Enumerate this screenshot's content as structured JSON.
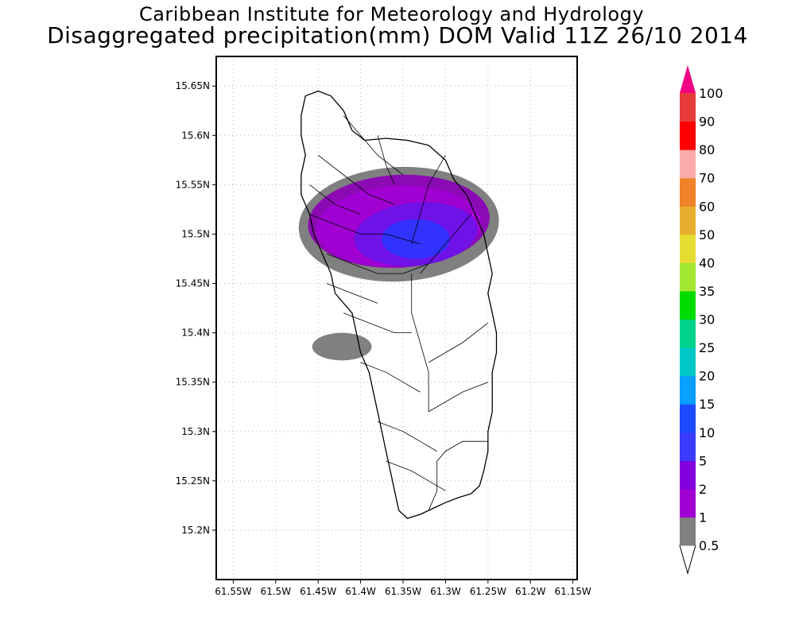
{
  "header": {
    "institute": "Caribbean Institute for Meteorology and Hydrology",
    "product": "Disaggregated precipitation(mm) DOM Valid 11Z 26/10 2014"
  },
  "map": {
    "lat_range": [
      15.15,
      15.68
    ],
    "lon_range": [
      -61.57,
      -61.145
    ],
    "lat_ticks": [
      {
        "value": 15.2,
        "label": "15.2N"
      },
      {
        "value": 15.25,
        "label": "15.25N"
      },
      {
        "value": 15.3,
        "label": "15.3N"
      },
      {
        "value": 15.35,
        "label": "15.35N"
      },
      {
        "value": 15.4,
        "label": "15.4N"
      },
      {
        "value": 15.45,
        "label": "15.45N"
      },
      {
        "value": 15.5,
        "label": "15.5N"
      },
      {
        "value": 15.55,
        "label": "15.55N"
      },
      {
        "value": 15.6,
        "label": "15.6N"
      },
      {
        "value": 15.65,
        "label": "15.65N"
      }
    ],
    "lon_ticks": [
      {
        "value": -61.55,
        "label": "61.55W"
      },
      {
        "value": -61.5,
        "label": "61.5W"
      },
      {
        "value": -61.45,
        "label": "61.45W"
      },
      {
        "value": -61.4,
        "label": "61.4W"
      },
      {
        "value": -61.35,
        "label": "61.35W"
      },
      {
        "value": -61.3,
        "label": "61.3W"
      },
      {
        "value": -61.25,
        "label": "61.25W"
      },
      {
        "value": -61.2,
        "label": "61.2W"
      },
      {
        "value": -61.15,
        "label": "61.15W"
      }
    ],
    "grid": "dotted",
    "coastline": [
      [
        -61.465,
        15.64
      ],
      [
        -61.45,
        15.645
      ],
      [
        -61.435,
        15.64
      ],
      [
        -61.42,
        15.625
      ],
      [
        -61.41,
        15.605
      ],
      [
        -61.395,
        15.595
      ],
      [
        -61.37,
        15.597
      ],
      [
        -61.345,
        15.595
      ],
      [
        -61.32,
        15.59
      ],
      [
        -61.3,
        15.575
      ],
      [
        -61.29,
        15.555
      ],
      [
        -61.275,
        15.54
      ],
      [
        -61.265,
        15.52
      ],
      [
        -61.255,
        15.5
      ],
      [
        -61.25,
        15.48
      ],
      [
        -61.245,
        15.46
      ],
      [
        -61.25,
        15.44
      ],
      [
        -61.245,
        15.42
      ],
      [
        -61.24,
        15.4
      ],
      [
        -61.24,
        15.38
      ],
      [
        -61.245,
        15.36
      ],
      [
        -61.245,
        15.34
      ],
      [
        -61.245,
        15.32
      ],
      [
        -61.25,
        15.3
      ],
      [
        -61.25,
        15.28
      ],
      [
        -61.255,
        15.26
      ],
      [
        -61.26,
        15.245
      ],
      [
        -61.27,
        15.237
      ],
      [
        -61.285,
        15.233
      ],
      [
        -61.3,
        15.228
      ],
      [
        -61.315,
        15.222
      ],
      [
        -61.33,
        15.216
      ],
      [
        -61.345,
        15.212
      ],
      [
        -61.355,
        15.22
      ],
      [
        -61.36,
        15.24
      ],
      [
        -61.365,
        15.26
      ],
      [
        -61.37,
        15.28
      ],
      [
        -61.375,
        15.3
      ],
      [
        -61.38,
        15.32
      ],
      [
        -61.385,
        15.34
      ],
      [
        -61.39,
        15.36
      ],
      [
        -61.4,
        15.38
      ],
      [
        -61.405,
        15.4
      ],
      [
        -61.41,
        15.42
      ],
      [
        -61.43,
        15.44
      ],
      [
        -61.435,
        15.46
      ],
      [
        -61.445,
        15.48
      ],
      [
        -61.455,
        15.5
      ],
      [
        -61.46,
        15.52
      ],
      [
        -61.47,
        15.54
      ],
      [
        -61.47,
        15.56
      ],
      [
        -61.465,
        15.58
      ],
      [
        -61.47,
        15.6
      ],
      [
        -61.47,
        15.62
      ],
      [
        -61.465,
        15.64
      ]
    ],
    "rivers": [
      [
        [
          -61.42,
          15.62
        ],
        [
          -61.4,
          15.6
        ],
        [
          -61.38,
          15.58
        ],
        [
          -61.35,
          15.56
        ]
      ],
      [
        [
          -61.45,
          15.58
        ],
        [
          -61.42,
          15.56
        ],
        [
          -61.39,
          15.54
        ],
        [
          -61.36,
          15.53
        ]
      ],
      [
        [
          -61.46,
          15.52
        ],
        [
          -61.43,
          15.51
        ],
        [
          -61.4,
          15.5
        ],
        [
          -61.37,
          15.5
        ],
        [
          -61.33,
          15.49
        ]
      ],
      [
        [
          -61.44,
          15.48
        ],
        [
          -61.41,
          15.47
        ],
        [
          -61.38,
          15.46
        ],
        [
          -61.35,
          15.46
        ],
        [
          -61.32,
          15.47
        ]
      ],
      [
        [
          -61.3,
          15.58
        ],
        [
          -61.32,
          15.55
        ],
        [
          -61.33,
          15.52
        ],
        [
          -61.34,
          15.49
        ]
      ],
      [
        [
          -61.27,
          15.52
        ],
        [
          -61.29,
          15.5
        ],
        [
          -61.31,
          15.48
        ],
        [
          -61.33,
          15.46
        ]
      ],
      [
        [
          -61.34,
          15.46
        ],
        [
          -61.34,
          15.42
        ],
        [
          -61.33,
          15.39
        ],
        [
          -61.32,
          15.36
        ],
        [
          -61.32,
          15.32
        ]
      ],
      [
        [
          -61.42,
          15.42
        ],
        [
          -61.39,
          15.41
        ],
        [
          -61.36,
          15.4
        ],
        [
          -61.34,
          15.4
        ]
      ],
      [
        [
          -61.4,
          15.37
        ],
        [
          -61.37,
          15.36
        ],
        [
          -61.35,
          15.35
        ],
        [
          -61.33,
          15.34
        ]
      ],
      [
        [
          -61.25,
          15.41
        ],
        [
          -61.28,
          15.39
        ],
        [
          -61.3,
          15.38
        ],
        [
          -61.32,
          15.37
        ]
      ],
      [
        [
          -61.25,
          15.35
        ],
        [
          -61.28,
          15.34
        ],
        [
          -61.3,
          15.33
        ],
        [
          -61.32,
          15.32
        ]
      ],
      [
        [
          -61.38,
          15.31
        ],
        [
          -61.35,
          15.3
        ],
        [
          -61.33,
          15.29
        ],
        [
          -61.31,
          15.28
        ]
      ],
      [
        [
          -61.25,
          15.29
        ],
        [
          -61.28,
          15.29
        ],
        [
          -61.3,
          15.28
        ],
        [
          -61.31,
          15.27
        ]
      ],
      [
        [
          -61.37,
          15.27
        ],
        [
          -61.34,
          15.26
        ],
        [
          -61.32,
          15.25
        ],
        [
          -61.3,
          15.24
        ]
      ],
      [
        [
          -61.31,
          15.27
        ],
        [
          -61.31,
          15.24
        ],
        [
          -61.32,
          15.22
        ]
      ],
      [
        [
          -61.44,
          15.45
        ],
        [
          -61.41,
          15.44
        ],
        [
          -61.38,
          15.43
        ]
      ],
      [
        [
          -61.46,
          15.55
        ],
        [
          -61.43,
          15.53
        ],
        [
          -61.4,
          15.52
        ]
      ],
      [
        [
          -61.38,
          15.6
        ],
        [
          -61.37,
          15.57
        ],
        [
          -61.36,
          15.55
        ]
      ]
    ],
    "precip_patches": [
      {
        "bin": "0.5-1",
        "color": "#808080",
        "center": [
          -61.355,
          15.51
        ],
        "radius_deg": [
          0.118,
          0.058
        ],
        "rotation": -3
      },
      {
        "bin": "0.5-1",
        "color": "#808080",
        "center": [
          -61.422,
          15.386
        ],
        "radius_deg": [
          0.035,
          0.014
        ],
        "rotation": 0
      },
      {
        "bin": "1-2",
        "color": "#8c0ab4",
        "center": [
          -61.355,
          15.513
        ],
        "radius_deg": [
          0.107,
          0.047
        ],
        "rotation": -3
      },
      {
        "bin": "2-5",
        "color": "#a000d2",
        "center": [
          -61.355,
          15.508
        ],
        "radius_deg": [
          0.097,
          0.041
        ],
        "rotation": -3
      },
      {
        "bin": "5-10",
        "color": "#6e12e8",
        "center": [
          -61.335,
          15.5
        ],
        "radius_deg": [
          0.073,
          0.032
        ],
        "rotation": -6
      },
      {
        "bin": "10-15",
        "color": "#3232ff",
        "center": [
          -61.335,
          15.495
        ],
        "radius_deg": [
          0.04,
          0.02
        ],
        "rotation": 0
      }
    ]
  },
  "colorbar": {
    "levels": [
      {
        "label": "0.5",
        "color": "#808080"
      },
      {
        "label": "1",
        "color": "#a000d2"
      },
      {
        "label": "2",
        "color": "#8200dc"
      },
      {
        "label": "5",
        "color": "#3c3cff"
      },
      {
        "label": "10",
        "color": "#1e4bff"
      },
      {
        "label": "15",
        "color": "#0aa0ff"
      },
      {
        "label": "20",
        "color": "#00c8c8"
      },
      {
        "label": "25",
        "color": "#00d28c"
      },
      {
        "label": "30",
        "color": "#00dc00"
      },
      {
        "label": "35",
        "color": "#a0e632"
      },
      {
        "label": "40",
        "color": "#e6dc32"
      },
      {
        "label": "50",
        "color": "#e6af2d"
      },
      {
        "label": "60",
        "color": "#f08228"
      },
      {
        "label": "70",
        "color": "#faaaaa"
      },
      {
        "label": "80",
        "color": "#ff0000"
      },
      {
        "label": "90",
        "color": "#e63c3c"
      },
      {
        "label": "100",
        "color": "#f00082"
      }
    ],
    "under_color": "#ffffff",
    "over_color": "#f00082"
  }
}
